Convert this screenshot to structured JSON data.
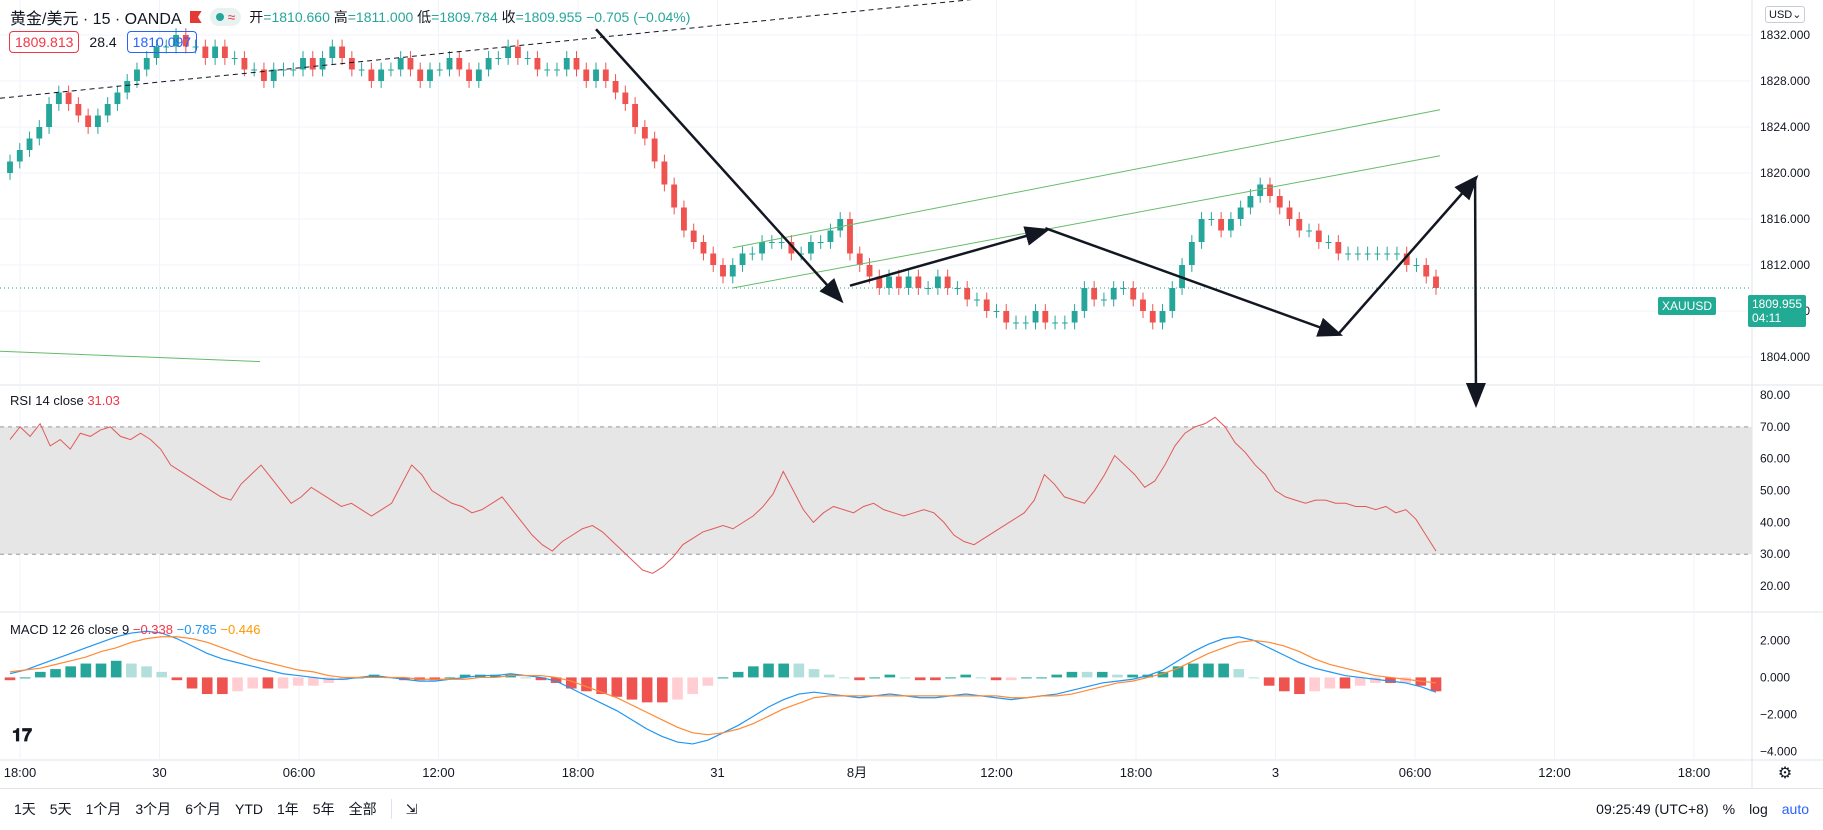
{
  "legend": {
    "symbol": "黄金/美元 · 15 · OANDA",
    "open_label": "开",
    "open": "=1810.660",
    "high_label": "高",
    "high": "=1811.000",
    "low_label": "低",
    "low": "=1809.784",
    "close_label": "收",
    "close": "=1809.955",
    "change": "−0.705 (−0.04%)"
  },
  "price_boxes": {
    "bid": "1809.813",
    "spread": "28.4",
    "ask": "1810.097"
  },
  "currency_selector": "USD",
  "last_price": {
    "symbol_tag": "XAUUSD",
    "price": "1809.955",
    "countdown": "04:11"
  },
  "rsi_label": {
    "name": "RSI 14 close",
    "value": "31.03"
  },
  "macd_label": {
    "name": "MACD 12 26 close 9",
    "v1": "−0.338",
    "v2": "−0.785",
    "v3": "−0.446"
  },
  "time_axis": [
    "18:00",
    "30",
    "06:00",
    "12:00",
    "18:00",
    "31",
    "8月",
    "12:00",
    "18:00",
    "3",
    "06:00",
    "12:00",
    "18:00"
  ],
  "bottom_bar": {
    "ranges": [
      "1天",
      "5天",
      "1个月",
      "3个月",
      "6个月",
      "YTD",
      "1年",
      "5年",
      "全部"
    ],
    "clock": "09:25:49 (UTC+8)",
    "percent": "%",
    "log": "log",
    "auto": "auto"
  },
  "colors": {
    "up": "#26a69a",
    "down": "#ef5350",
    "rsi_line": "#e15a5a",
    "macd_line": "#2196f3",
    "signal_line": "#ff8a34",
    "channel": "#66bb6a"
  },
  "chart_data": [
    {
      "type": "candlestick",
      "title": "黄金/美元 · 15 · OANDA",
      "ylim": [
        1802,
        1834
      ],
      "y_ticks": [
        "1832.000",
        "1828.000",
        "1824.000",
        "1820.000",
        "1816.000",
        "1812.000",
        "1808.000",
        "1804.000"
      ],
      "close": [
        1821,
        1822,
        1823,
        1824,
        1826,
        1827,
        1826,
        1825,
        1824,
        1825,
        1826,
        1827,
        1828,
        1829,
        1830,
        1831,
        1831,
        1832,
        1831,
        1831,
        1830,
        1831,
        1830,
        1830,
        1829,
        1829,
        1828,
        1829,
        1829,
        1829,
        1830,
        1829,
        1830,
        1831,
        1830,
        1829,
        1829,
        1828,
        1829,
        1829,
        1830,
        1829,
        1828,
        1829,
        1829,
        1830,
        1829,
        1828,
        1829,
        1830,
        1830,
        1831,
        1830,
        1830,
        1829,
        1829,
        1829,
        1830,
        1829,
        1828,
        1829,
        1828,
        1827,
        1826,
        1824,
        1823,
        1821,
        1819,
        1817,
        1815,
        1814,
        1813,
        1812,
        1811,
        1812,
        1813,
        1813,
        1814,
        1814,
        1814,
        1813,
        1813,
        1814,
        1814,
        1815,
        1816,
        1813,
        1812,
        1811,
        1810,
        1811,
        1810,
        1811,
        1810,
        1810,
        1811,
        1810,
        1810,
        1809,
        1809,
        1808,
        1808,
        1807,
        1807,
        1807,
        1808,
        1807,
        1807,
        1807,
        1808,
        1810,
        1809,
        1809,
        1810,
        1810,
        1809,
        1808,
        1807,
        1808,
        1810,
        1812,
        1814,
        1816,
        1816,
        1815,
        1816,
        1817,
        1818,
        1819,
        1818,
        1817,
        1816,
        1815,
        1815,
        1814,
        1814,
        1813,
        1813,
        1813,
        1813,
        1813,
        1813,
        1813,
        1812,
        1812,
        1811,
        1810
      ]
    },
    {
      "type": "line",
      "title": "RSI 14 close",
      "ylim": [
        15,
        80
      ],
      "y_ticks": [
        "80.00",
        "70.00",
        "60.00",
        "50.00",
        "40.00",
        "30.00",
        "20.00"
      ],
      "band": [
        30,
        70
      ],
      "values": [
        66,
        70,
        67,
        71,
        64,
        66,
        63,
        68,
        67,
        69,
        70,
        67,
        66,
        68,
        66,
        63,
        58,
        56,
        54,
        52,
        50,
        48,
        47,
        52,
        55,
        58,
        54,
        50,
        46,
        48,
        51,
        49,
        47,
        45,
        46,
        44,
        42,
        44,
        46,
        52,
        58,
        55,
        50,
        48,
        46,
        45,
        43,
        44,
        46,
        48,
        44,
        40,
        36,
        33,
        31,
        34,
        36,
        38,
        39,
        37,
        34,
        31,
        28,
        25,
        24,
        26,
        29,
        33,
        35,
        37,
        38,
        39,
        38,
        40,
        42,
        45,
        49,
        56,
        50,
        44,
        40,
        43,
        45,
        44,
        43,
        45,
        46,
        44,
        43,
        42,
        43,
        44,
        43,
        40,
        36,
        34,
        33,
        35,
        37,
        39,
        41,
        43,
        47,
        55,
        52,
        48,
        47,
        46,
        50,
        55,
        61,
        58,
        55,
        51,
        53,
        58,
        64,
        68,
        70,
        71,
        73,
        70,
        65,
        62,
        58,
        55,
        50,
        48,
        47,
        46,
        47,
        47,
        46,
        46,
        45,
        45,
        44,
        45,
        43,
        44,
        41,
        36,
        31
      ]
    },
    {
      "type": "line",
      "title": "MACD 12 26 close 9",
      "ylim": [
        -4.2,
        3.0
      ],
      "y_ticks": [
        "2.000",
        "0.000",
        "−2.000",
        "−4.000"
      ],
      "series": [
        {
          "name": "MACD",
          "values": [
            0.2,
            0.4,
            0.7,
            1.0,
            1.3,
            1.6,
            1.9,
            2.2,
            2.4,
            2.5,
            2.4,
            2.1,
            1.7,
            1.3,
            1.0,
            0.8,
            0.6,
            0.4,
            0.2,
            0.1,
            0.0,
            -0.1,
            -0.1,
            0.0,
            0.1,
            0.0,
            -0.1,
            -0.2,
            -0.2,
            -0.1,
            0.0,
            0.1,
            0.1,
            0.2,
            0.1,
            0.0,
            -0.2,
            -0.6,
            -1.0,
            -1.4,
            -1.8,
            -2.3,
            -2.8,
            -3.2,
            -3.5,
            -3.6,
            -3.4,
            -3.0,
            -2.6,
            -2.1,
            -1.6,
            -1.2,
            -0.9,
            -0.8,
            -0.9,
            -1.0,
            -1.1,
            -1.0,
            -0.9,
            -1.0,
            -1.1,
            -1.1,
            -1.0,
            -0.9,
            -1.0,
            -1.1,
            -1.2,
            -1.1,
            -1.0,
            -0.9,
            -0.7,
            -0.5,
            -0.3,
            -0.2,
            -0.1,
            0.1,
            0.4,
            0.9,
            1.4,
            1.8,
            2.1,
            2.2,
            2.0,
            1.6,
            1.2,
            0.8,
            0.5,
            0.3,
            0.1,
            0.0,
            -0.1,
            -0.2,
            -0.3,
            -0.5,
            -0.8
          ]
        },
        {
          "name": "Signal",
          "values": [
            0.3,
            0.4,
            0.5,
            0.7,
            0.9,
            1.1,
            1.4,
            1.6,
            1.9,
            2.1,
            2.2,
            2.2,
            2.1,
            1.9,
            1.6,
            1.3,
            1.0,
            0.8,
            0.6,
            0.4,
            0.3,
            0.1,
            0.0,
            0.0,
            0.0,
            0.0,
            0.0,
            -0.1,
            -0.1,
            -0.1,
            -0.1,
            0.0,
            0.0,
            0.1,
            0.1,
            0.1,
            0.0,
            -0.2,
            -0.5,
            -0.8,
            -1.1,
            -1.5,
            -1.9,
            -2.3,
            -2.7,
            -3.0,
            -3.1,
            -3.0,
            -2.8,
            -2.5,
            -2.1,
            -1.7,
            -1.4,
            -1.1,
            -1.0,
            -1.0,
            -1.0,
            -1.0,
            -1.0,
            -1.0,
            -1.0,
            -1.0,
            -1.0,
            -1.0,
            -1.0,
            -1.0,
            -1.1,
            -1.1,
            -1.0,
            -1.0,
            -0.9,
            -0.7,
            -0.5,
            -0.3,
            -0.2,
            0.0,
            0.2,
            0.5,
            0.9,
            1.3,
            1.6,
            1.9,
            2.0,
            1.9,
            1.7,
            1.4,
            1.0,
            0.7,
            0.5,
            0.3,
            0.1,
            0.0,
            -0.1,
            -0.2,
            -0.3
          ]
        }
      ]
    }
  ]
}
